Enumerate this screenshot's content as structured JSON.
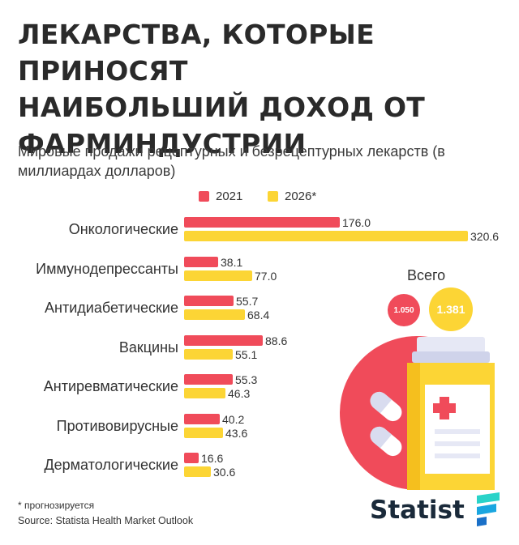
{
  "title": "ЛЕКАРСТВА, КОТОРЫЕ ПРИНОСЯТ\nНАИБОЛЬШИЙ ДОХОД ОТ\nФАРМИНДУСТРИИ",
  "subtitle": "Мировые продажи рецептурных и безрецептурных лекарств (в миллиардах долларов)",
  "colors": {
    "s2021": "#f04b5a",
    "s2026": "#fcd535",
    "text": "#2a2a2a"
  },
  "chart_data": {
    "type": "bar",
    "orientation": "horizontal",
    "title": "ЛЕКАРСТВА, КОТОРЫЕ ПРИНОСЯТ НАИБОЛЬШИЙ ДОХОД ОТ ФАРМИНДУСТРИИ",
    "subtitle": "Мировые продажи рецептурных и безрецептурных лекарств (в миллиардах долларов)",
    "categories": [
      "Онкологические",
      "Иммунодепрессанты",
      "Антидиабетические",
      "Вакцины",
      "Антиревматические",
      "Противовирусные",
      "Дерматологические"
    ],
    "series": [
      {
        "name": "2021",
        "values": [
          176.0,
          38.1,
          55.7,
          88.6,
          55.3,
          40.2,
          16.6
        ],
        "labels": [
          "176.0",
          "38.1",
          "55.7",
          "88.6",
          "55.3",
          "40.2",
          "16.6"
        ]
      },
      {
        "name": "2026*",
        "values": [
          320.6,
          77.0,
          68.4,
          55.1,
          46.3,
          43.6,
          30.6
        ],
        "labels": [
          "320.6",
          "77.0",
          "68.4",
          "55.1",
          "46.3",
          "43.6",
          "30.6"
        ]
      }
    ],
    "legend_position": "top",
    "grid": false,
    "totals": {
      "label": "Всего",
      "v2021": "1.050",
      "v2026": "1.381"
    }
  },
  "footnote": "* прогнозируется",
  "source": "Source: Statista Health Market Outlook",
  "brand": "Statist"
}
